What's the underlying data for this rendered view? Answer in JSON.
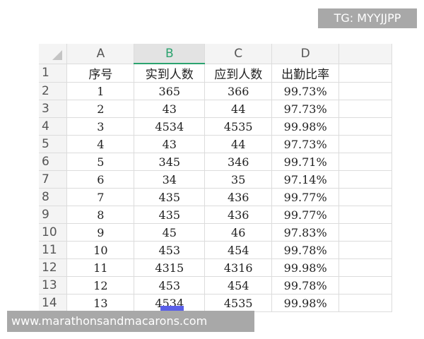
{
  "badge": "TG: MYYJJPP",
  "footer": "www.marathonsandmacarons.com",
  "columns": [
    "A",
    "B",
    "C",
    "D"
  ],
  "selected_column": "B",
  "accent": "#2ca36f",
  "header_row": {
    "num": "1",
    "cells": [
      "序号",
      "实到人数",
      "应到人数",
      "出勤比率"
    ]
  },
  "rows": [
    {
      "num": "2",
      "cells": [
        "1",
        "365",
        "366",
        "99.73%"
      ]
    },
    {
      "num": "3",
      "cells": [
        "2",
        "43",
        "44",
        "97.73%"
      ]
    },
    {
      "num": "4",
      "cells": [
        "3",
        "4534",
        "4535",
        "99.98%"
      ]
    },
    {
      "num": "5",
      "cells": [
        "4",
        "43",
        "44",
        "97.73%"
      ]
    },
    {
      "num": "6",
      "cells": [
        "5",
        "345",
        "346",
        "99.71%"
      ]
    },
    {
      "num": "7",
      "cells": [
        "6",
        "34",
        "35",
        "97.14%"
      ]
    },
    {
      "num": "8",
      "cells": [
        "7",
        "435",
        "436",
        "99.77%"
      ]
    },
    {
      "num": "9",
      "cells": [
        "8",
        "435",
        "436",
        "99.77%"
      ]
    },
    {
      "num": "10",
      "cells": [
        "9",
        "45",
        "46",
        "97.83%"
      ]
    },
    {
      "num": "11",
      "cells": [
        "10",
        "453",
        "454",
        "99.78%"
      ]
    },
    {
      "num": "12",
      "cells": [
        "11",
        "4315",
        "4316",
        "99.98%"
      ]
    },
    {
      "num": "13",
      "cells": [
        "12",
        "453",
        "454",
        "99.78%"
      ]
    },
    {
      "num": "14",
      "cells": [
        "13",
        "4534",
        "4535",
        "99.98%"
      ]
    }
  ]
}
